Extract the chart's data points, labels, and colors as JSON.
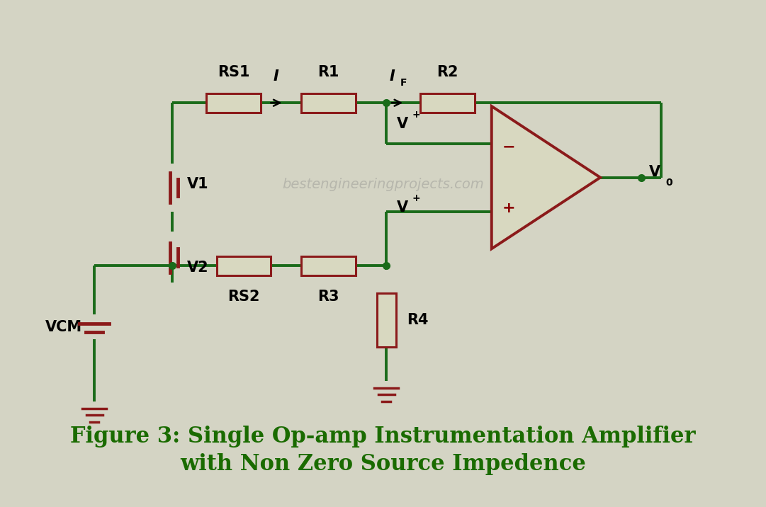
{
  "bg_color": "#d4d4c4",
  "wire_color": "#1a6b1a",
  "component_color": "#8b1a1a",
  "component_fill": "#d8d8c0",
  "dot_color": "#1a6b1a",
  "text_color_black": "#000000",
  "text_color_red": "#8b0000",
  "title_color": "#1a6b00",
  "title_line1": "Figure 3: Single Op-amp Instrumentation Amplifier",
  "title_line2": "with Non Zero Source Impedence",
  "watermark": "bestengineeringprojects.com"
}
